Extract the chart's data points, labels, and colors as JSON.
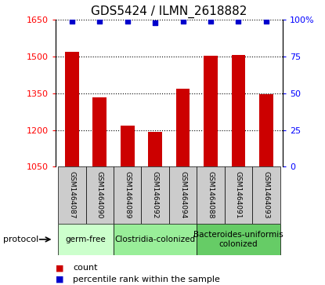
{
  "title": "GDS5424 / ILMN_2618882",
  "samples": [
    "GSM1464087",
    "GSM1464090",
    "GSM1464089",
    "GSM1464092",
    "GSM1464094",
    "GSM1464088",
    "GSM1464091",
    "GSM1464093"
  ],
  "counts": [
    1520,
    1335,
    1218,
    1192,
    1370,
    1505,
    1508,
    1345
  ],
  "percentile_ranks": [
    99,
    99,
    99,
    98,
    99,
    99,
    99,
    99
  ],
  "ylim_left": [
    1050,
    1650
  ],
  "ylim_right": [
    0,
    100
  ],
  "yticks_left": [
    1050,
    1200,
    1350,
    1500,
    1650
  ],
  "yticks_right": [
    0,
    25,
    50,
    75,
    100
  ],
  "bar_color": "#cc0000",
  "dot_color": "#0000cc",
  "protocols": [
    {
      "label": "germ-free",
      "start": 0,
      "end": 2,
      "color": "#ccffcc"
    },
    {
      "label": "Clostridia-colonized",
      "start": 2,
      "end": 5,
      "color": "#99ee99"
    },
    {
      "label": "Bacteroides-uniformis\ncolonized",
      "start": 5,
      "end": 8,
      "color": "#66cc66"
    }
  ],
  "legend_count_label": "count",
  "legend_pct_label": "percentile rank within the sample",
  "protocol_label": "protocol",
  "bg_color": "#ffffff",
  "sample_box_color": "#cccccc",
  "title_fontsize": 11,
  "tick_fontsize": 8,
  "sample_fontsize": 6.5,
  "proto_fontsize": 7.5,
  "legend_fontsize": 8
}
